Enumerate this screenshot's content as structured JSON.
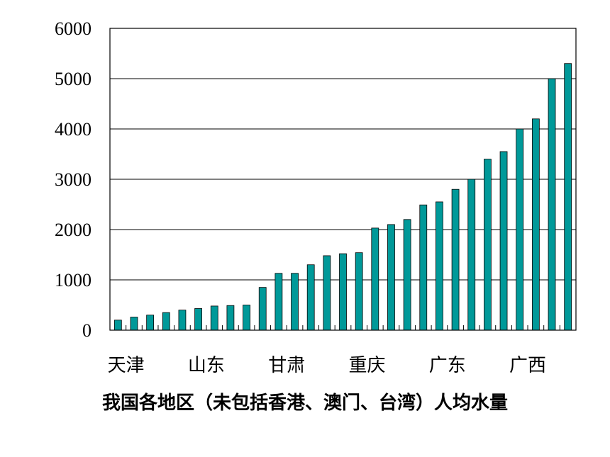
{
  "chart_data": {
    "type": "bar",
    "title": "",
    "caption": "我国各地区（未包括香港、澳门、台湾）人均水量",
    "xlabel": "",
    "ylabel": "",
    "ylim": [
      0,
      6000
    ],
    "yticks": [
      0,
      1000,
      2000,
      3000,
      4000,
      5000,
      6000
    ],
    "grid": true,
    "bar_color": "#009999",
    "category_labels": [
      {
        "label": "天津",
        "index": 1
      },
      {
        "label": "山东",
        "index": 6
      },
      {
        "label": "甘肃",
        "index": 11
      },
      {
        "label": "重庆",
        "index": 16
      },
      {
        "label": "广东",
        "index": 21
      },
      {
        "label": "广西",
        "index": 26
      }
    ],
    "values": [
      200,
      260,
      300,
      350,
      400,
      430,
      480,
      490,
      500,
      850,
      1130,
      1130,
      1300,
      1480,
      1520,
      1540,
      2030,
      2100,
      2200,
      2490,
      2550,
      2800,
      3000,
      3400,
      3550,
      4000,
      4200,
      5000,
      5300
    ]
  }
}
